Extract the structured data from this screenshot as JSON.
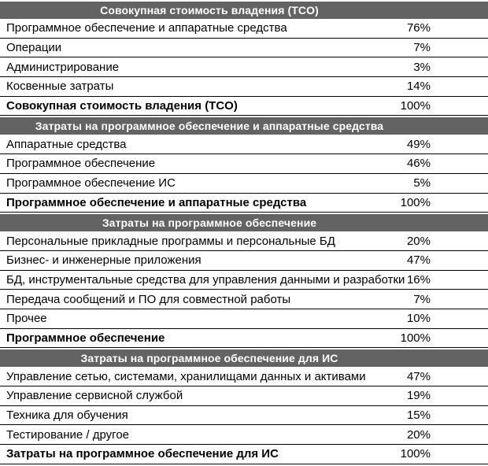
{
  "colors": {
    "header_bg": "#636363",
    "header_text": "#ffffff",
    "line": "#000000",
    "text": "#000000",
    "bg": "#ffffff"
  },
  "sections": [
    {
      "header": "Совокупная стоимость владения (TCO)",
      "rows": [
        {
          "label": "Программное обеспечение и аппаратные средства",
          "value": "76%"
        },
        {
          "label": "Операции",
          "value": "7%"
        },
        {
          "label": "Администрирование",
          "value": "3%"
        },
        {
          "label": "Косвенные затраты",
          "value": "14%"
        },
        {
          "label": "Совокупная стоимость владения (TCO)",
          "value": "100%",
          "total": true
        }
      ]
    },
    {
      "header": "Затраты на программное обеспечение и аппаратные средства",
      "rows": [
        {
          "label": "Аппаратные средства",
          "value": "49%"
        },
        {
          "label": "Программное обеспечение",
          "value": "46%"
        },
        {
          "label": "Программное обеспечение ИС",
          "value": "5%"
        },
        {
          "label": "Программное обеспечение и аппаратные средства",
          "value": "100%",
          "total": true
        }
      ]
    },
    {
      "header": "Затраты на программное обеспечение",
      "rows": [
        {
          "label": "Персональные прикладные программы и персональные БД",
          "value": "20%"
        },
        {
          "label": "Бизнес- и инженерные приложения",
          "value": "47%"
        },
        {
          "label": "БД, инструментальные средства для управления данными и разработки",
          "value": "16%"
        },
        {
          "label": "Передача сообщений и ПО для совместной работы",
          "value": "7%"
        },
        {
          "label": "Прочее",
          "value": "10%"
        },
        {
          "label": "Программное обеспечение",
          "value": "100%",
          "total": true
        }
      ]
    },
    {
      "header": "Затраты на программное обеспечение для ИС",
      "rows": [
        {
          "label": "Управление сетью, системами, хранилищами данных и активами",
          "value": "47%"
        },
        {
          "label": "Управление сервисной службой",
          "value": "19%"
        },
        {
          "label": "Техника для обучения",
          "value": "15%"
        },
        {
          "label": "Тестирование / другое",
          "value": "20%"
        },
        {
          "label": "Затраты на программное обеспечение для ИС",
          "value": "100%",
          "total": true
        }
      ]
    }
  ]
}
